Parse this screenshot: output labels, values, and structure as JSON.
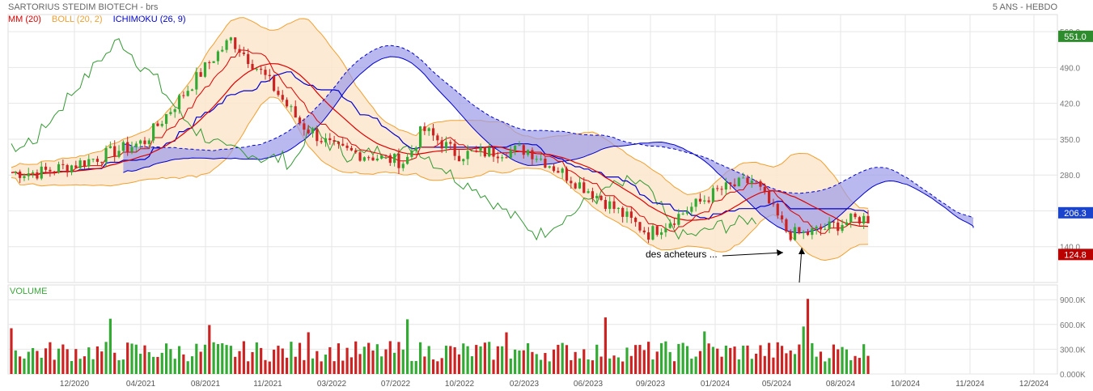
{
  "header": {
    "title": "SARTORIUS STEDIM BIOTECH - brs",
    "period": "5 ANS - HEBDO"
  },
  "legend": {
    "mm": "MM (20)",
    "boll": "BOLL (20, 2)",
    "ichimoku": "ICHIMOKU (26, 9)"
  },
  "colors": {
    "mm": "#dd0000",
    "boll": "#f0a030",
    "boll_fill": "#fbe6cc",
    "ichimoku": "#0000cc",
    "cloud": "#9b9be8",
    "up": "#33aa33",
    "down": "#cc2222",
    "lagging": "#339933",
    "last_price": "#2e8b2e",
    "min_price": "#bb0000",
    "ichimoku_price": "#1a44cc"
  },
  "chart_data": [
    {
      "type": "candlestick",
      "title": "SARTORIUS STEDIM BIOTECH - brs",
      "x_ticks": [
        "12/2020",
        "04/2021",
        "08/2021",
        "11/2021",
        "03/2022",
        "07/2022",
        "10/2022",
        "02/2023",
        "06/2023",
        "09/2023",
        "01/2024",
        "05/2024",
        "08/2024",
        "10/2024",
        "11/2024",
        "12/2024"
      ],
      "y_ticks": [
        "140.0",
        "210.0",
        "280.0",
        "350.0",
        "420.0",
        "490.0",
        "560.0"
      ],
      "ylim": [
        70,
        565
      ],
      "price_labels": {
        "last": "551.0",
        "ichimoku": "206.3",
        "min": "124.8"
      },
      "key_points": [
        {
          "date": "10/2020",
          "close": 285
        },
        {
          "date": "12/2020",
          "close": 300
        },
        {
          "date": "04/2021",
          "close": 345
        },
        {
          "date": "08/2021",
          "close": 510
        },
        {
          "date": "09/2021",
          "close": 545
        },
        {
          "date": "11/2021",
          "close": 470
        },
        {
          "date": "01/2022",
          "close": 380
        },
        {
          "date": "03/2022",
          "close": 330
        },
        {
          "date": "07/2022",
          "close": 305
        },
        {
          "date": "08/2022",
          "close": 370
        },
        {
          "date": "10/2022",
          "close": 320
        },
        {
          "date": "02/2023",
          "close": 330
        },
        {
          "date": "06/2023",
          "close": 240
        },
        {
          "date": "09/2023",
          "close": 165
        },
        {
          "date": "01/2024",
          "close": 250
        },
        {
          "date": "03/2024",
          "close": 270
        },
        {
          "date": "05/2024",
          "close": 165
        },
        {
          "date": "06/2024",
          "close": 165
        },
        {
          "date": "08/2024",
          "close": 185
        },
        {
          "date": "09/2024",
          "close": 195
        }
      ],
      "annotation": "des acheteurs ..."
    },
    {
      "type": "bar",
      "title": "VOLUME",
      "y_ticks": [
        "0.000K",
        "300.0K",
        "600.0K",
        "900.0K"
      ],
      "ylim": [
        0,
        1000000
      ],
      "values": [
        290000,
        910000,
        280000,
        740000,
        550000,
        760000
      ]
    }
  ]
}
